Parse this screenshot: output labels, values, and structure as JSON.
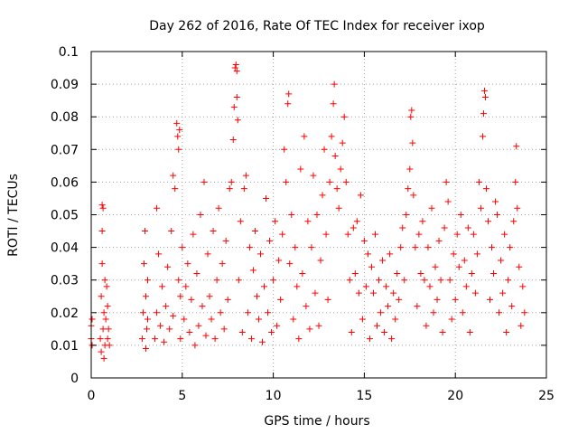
{
  "chart_data": {
    "type": "scatter",
    "title": "Day 262 of 2016, Rate Of TEC Index for receiver ixop",
    "xlabel": "GPS time / hours",
    "ylabel": "ROTI / TECUs",
    "xlim": [
      0,
      25
    ],
    "ylim": [
      0,
      0.1
    ],
    "xticks": [
      0,
      5,
      10,
      15,
      20,
      25
    ],
    "xtick_labels": [
      "0",
      "5",
      "10",
      "15",
      "20",
      "25"
    ],
    "yticks": [
      0,
      0.01,
      0.02,
      0.03,
      0.04,
      0.05,
      0.06,
      0.07,
      0.08,
      0.09,
      0.1
    ],
    "ytick_labels": [
      "0",
      "0.01",
      "0.02",
      "0.03",
      "0.04",
      "0.05",
      "0.06",
      "0.07",
      "0.08",
      "0.09",
      "0.1"
    ],
    "grid": true,
    "marker": "plus",
    "color": "#ff0000",
    "series": [
      {
        "name": "ROTI",
        "points": [
          [
            0.0,
            0.016
          ],
          [
            0.0,
            0.012
          ],
          [
            0.05,
            0.018
          ],
          [
            0.05,
            0.01
          ],
          [
            0.5,
            0.012
          ],
          [
            0.55,
            0.008
          ],
          [
            0.55,
            0.025
          ],
          [
            0.6,
            0.035
          ],
          [
            0.6,
            0.045
          ],
          [
            0.6,
            0.053
          ],
          [
            0.65,
            0.052
          ],
          [
            0.65,
            0.015
          ],
          [
            0.7,
            0.02
          ],
          [
            0.7,
            0.006
          ],
          [
            0.75,
            0.03
          ],
          [
            0.75,
            0.01
          ],
          [
            0.8,
            0.018
          ],
          [
            0.85,
            0.028
          ],
          [
            0.9,
            0.012
          ],
          [
            0.9,
            0.022
          ],
          [
            0.95,
            0.015
          ],
          [
            1.0,
            0.01
          ],
          [
            2.8,
            0.012
          ],
          [
            2.85,
            0.02
          ],
          [
            2.9,
            0.035
          ],
          [
            2.95,
            0.045
          ],
          [
            3.0,
            0.025
          ],
          [
            3.0,
            0.009
          ],
          [
            3.05,
            0.015
          ],
          [
            3.1,
            0.03
          ],
          [
            3.1,
            0.018
          ],
          [
            3.5,
            0.012
          ],
          [
            3.6,
            0.02
          ],
          [
            3.6,
            0.052
          ],
          [
            3.7,
            0.038
          ],
          [
            3.8,
            0.016
          ],
          [
            3.9,
            0.028
          ],
          [
            4.0,
            0.011
          ],
          [
            4.1,
            0.022
          ],
          [
            4.2,
            0.034
          ],
          [
            4.3,
            0.015
          ],
          [
            4.4,
            0.045
          ],
          [
            4.5,
            0.062
          ],
          [
            4.5,
            0.019
          ],
          [
            4.6,
            0.058
          ],
          [
            4.7,
            0.078
          ],
          [
            4.75,
            0.074
          ],
          [
            4.8,
            0.07
          ],
          [
            4.8,
            0.03
          ],
          [
            4.85,
            0.076
          ],
          [
            4.9,
            0.025
          ],
          [
            4.9,
            0.012
          ],
          [
            5.0,
            0.04
          ],
          [
            5.1,
            0.018
          ],
          [
            5.2,
            0.028
          ],
          [
            5.3,
            0.035
          ],
          [
            5.4,
            0.014
          ],
          [
            5.5,
            0.024
          ],
          [
            5.6,
            0.044
          ],
          [
            5.7,
            0.01
          ],
          [
            5.8,
            0.032
          ],
          [
            5.9,
            0.016
          ],
          [
            6.0,
            0.05
          ],
          [
            6.1,
            0.022
          ],
          [
            6.2,
            0.06
          ],
          [
            6.3,
            0.013
          ],
          [
            6.4,
            0.038
          ],
          [
            6.5,
            0.025
          ],
          [
            6.6,
            0.018
          ],
          [
            6.7,
            0.045
          ],
          [
            6.8,
            0.012
          ],
          [
            6.9,
            0.03
          ],
          [
            7.0,
            0.052
          ],
          [
            7.1,
            0.02
          ],
          [
            7.2,
            0.035
          ],
          [
            7.3,
            0.015
          ],
          [
            7.4,
            0.042
          ],
          [
            7.5,
            0.024
          ],
          [
            7.6,
            0.058
          ],
          [
            7.7,
            0.06
          ],
          [
            7.8,
            0.073
          ],
          [
            7.85,
            0.083
          ],
          [
            7.9,
            0.095
          ],
          [
            7.95,
            0.096
          ],
          [
            8.0,
            0.094
          ],
          [
            8.0,
            0.086
          ],
          [
            8.05,
            0.079
          ],
          [
            8.1,
            0.03
          ],
          [
            8.2,
            0.048
          ],
          [
            8.3,
            0.014
          ],
          [
            8.4,
            0.058
          ],
          [
            8.5,
            0.062
          ],
          [
            8.6,
            0.02
          ],
          [
            8.7,
            0.04
          ],
          [
            8.8,
            0.012
          ],
          [
            8.9,
            0.033
          ],
          [
            9.0,
            0.045
          ],
          [
            9.1,
            0.025
          ],
          [
            9.2,
            0.018
          ],
          [
            9.3,
            0.038
          ],
          [
            9.4,
            0.011
          ],
          [
            9.5,
            0.028
          ],
          [
            9.6,
            0.055
          ],
          [
            9.7,
            0.02
          ],
          [
            9.8,
            0.042
          ],
          [
            9.9,
            0.014
          ],
          [
            10.0,
            0.03
          ],
          [
            10.1,
            0.048
          ],
          [
            10.2,
            0.016
          ],
          [
            10.3,
            0.036
          ],
          [
            10.4,
            0.024
          ],
          [
            10.5,
            0.044
          ],
          [
            10.6,
            0.07
          ],
          [
            10.7,
            0.06
          ],
          [
            10.8,
            0.084
          ],
          [
            10.85,
            0.087
          ],
          [
            10.9,
            0.035
          ],
          [
            11.0,
            0.05
          ],
          [
            11.1,
            0.018
          ],
          [
            11.2,
            0.04
          ],
          [
            11.3,
            0.028
          ],
          [
            11.4,
            0.012
          ],
          [
            11.5,
            0.064
          ],
          [
            11.6,
            0.032
          ],
          [
            11.7,
            0.074
          ],
          [
            11.8,
            0.022
          ],
          [
            11.9,
            0.048
          ],
          [
            12.0,
            0.015
          ],
          [
            12.1,
            0.04
          ],
          [
            12.2,
            0.062
          ],
          [
            12.3,
            0.026
          ],
          [
            12.4,
            0.05
          ],
          [
            12.5,
            0.016
          ],
          [
            12.6,
            0.036
          ],
          [
            12.7,
            0.056
          ],
          [
            12.8,
            0.07
          ],
          [
            12.9,
            0.044
          ],
          [
            13.0,
            0.024
          ],
          [
            13.1,
            0.06
          ],
          [
            13.2,
            0.074
          ],
          [
            13.3,
            0.084
          ],
          [
            13.35,
            0.09
          ],
          [
            13.4,
            0.068
          ],
          [
            13.5,
            0.058
          ],
          [
            13.6,
            0.052
          ],
          [
            13.7,
            0.064
          ],
          [
            13.8,
            0.072
          ],
          [
            13.9,
            0.08
          ],
          [
            14.0,
            0.06
          ],
          [
            14.1,
            0.044
          ],
          [
            14.2,
            0.03
          ],
          [
            14.3,
            0.014
          ],
          [
            14.4,
            0.046
          ],
          [
            14.5,
            0.032
          ],
          [
            14.6,
            0.048
          ],
          [
            14.7,
            0.026
          ],
          [
            14.8,
            0.056
          ],
          [
            14.9,
            0.018
          ],
          [
            15.0,
            0.042
          ],
          [
            15.1,
            0.028
          ],
          [
            15.2,
            0.038
          ],
          [
            15.3,
            0.012
          ],
          [
            15.4,
            0.034
          ],
          [
            15.5,
            0.026
          ],
          [
            15.6,
            0.044
          ],
          [
            15.7,
            0.016
          ],
          [
            15.8,
            0.03
          ],
          [
            15.9,
            0.02
          ],
          [
            16.0,
            0.036
          ],
          [
            16.1,
            0.014
          ],
          [
            16.2,
            0.028
          ],
          [
            16.3,
            0.022
          ],
          [
            16.4,
            0.038
          ],
          [
            16.5,
            0.012
          ],
          [
            16.6,
            0.026
          ],
          [
            16.7,
            0.018
          ],
          [
            16.8,
            0.032
          ],
          [
            16.9,
            0.024
          ],
          [
            17.0,
            0.04
          ],
          [
            17.1,
            0.046
          ],
          [
            17.2,
            0.03
          ],
          [
            17.3,
            0.05
          ],
          [
            17.4,
            0.058
          ],
          [
            17.5,
            0.064
          ],
          [
            17.55,
            0.08
          ],
          [
            17.6,
            0.082
          ],
          [
            17.65,
            0.072
          ],
          [
            17.7,
            0.056
          ],
          [
            17.8,
            0.04
          ],
          [
            17.9,
            0.022
          ],
          [
            18.0,
            0.044
          ],
          [
            18.1,
            0.032
          ],
          [
            18.2,
            0.048
          ],
          [
            18.3,
            0.03
          ],
          [
            18.4,
            0.016
          ],
          [
            18.5,
            0.04
          ],
          [
            18.6,
            0.028
          ],
          [
            18.7,
            0.052
          ],
          [
            18.8,
            0.02
          ],
          [
            18.9,
            0.034
          ],
          [
            19.0,
            0.024
          ],
          [
            19.1,
            0.042
          ],
          [
            19.2,
            0.03
          ],
          [
            19.3,
            0.014
          ],
          [
            19.4,
            0.046
          ],
          [
            19.5,
            0.06
          ],
          [
            19.6,
            0.054
          ],
          [
            19.7,
            0.03
          ],
          [
            19.8,
            0.018
          ],
          [
            19.9,
            0.038
          ],
          [
            20.0,
            0.024
          ],
          [
            20.1,
            0.044
          ],
          [
            20.2,
            0.034
          ],
          [
            20.3,
            0.05
          ],
          [
            20.4,
            0.02
          ],
          [
            20.5,
            0.036
          ],
          [
            20.6,
            0.028
          ],
          [
            20.7,
            0.046
          ],
          [
            20.8,
            0.014
          ],
          [
            20.9,
            0.032
          ],
          [
            21.0,
            0.044
          ],
          [
            21.1,
            0.026
          ],
          [
            21.2,
            0.038
          ],
          [
            21.3,
            0.06
          ],
          [
            21.4,
            0.052
          ],
          [
            21.5,
            0.074
          ],
          [
            21.55,
            0.081
          ],
          [
            21.6,
            0.088
          ],
          [
            21.65,
            0.086
          ],
          [
            21.7,
            0.058
          ],
          [
            21.8,
            0.048
          ],
          [
            21.9,
            0.024
          ],
          [
            22.0,
            0.04
          ],
          [
            22.1,
            0.032
          ],
          [
            22.2,
            0.054
          ],
          [
            22.3,
            0.05
          ],
          [
            22.4,
            0.02
          ],
          [
            22.5,
            0.036
          ],
          [
            22.6,
            0.026
          ],
          [
            22.7,
            0.044
          ],
          [
            22.8,
            0.014
          ],
          [
            22.9,
            0.03
          ],
          [
            23.0,
            0.04
          ],
          [
            23.1,
            0.022
          ],
          [
            23.2,
            0.048
          ],
          [
            23.3,
            0.06
          ],
          [
            23.35,
            0.071
          ],
          [
            23.4,
            0.052
          ],
          [
            23.5,
            0.034
          ],
          [
            23.6,
            0.016
          ],
          [
            23.7,
            0.028
          ],
          [
            23.8,
            0.02
          ]
        ]
      }
    ]
  }
}
